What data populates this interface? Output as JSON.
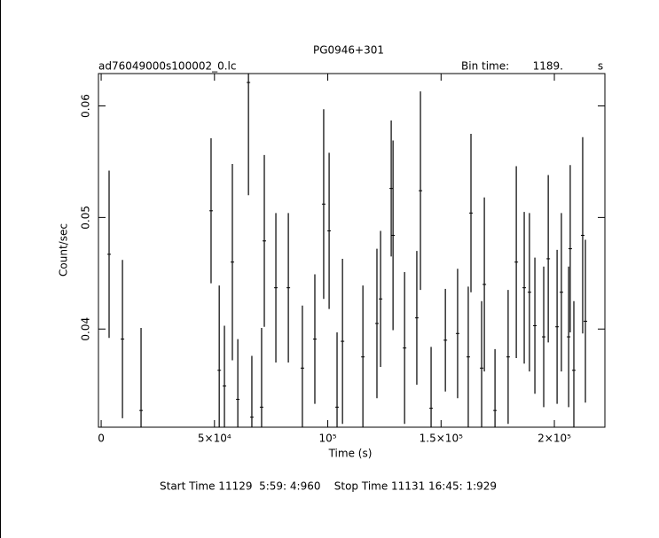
{
  "chart_data": {
    "type": "errorbar",
    "title": "PG0946+301",
    "subtitle": "ad76049000s100002_0.lc",
    "bin_time_label": "Bin time:",
    "bin_time_value": "1189.",
    "bin_time_unit": "s",
    "x_label": "Time (s)",
    "y_label": "Count/sec",
    "footer": "Start Time 11129  5:59: 4:960    Stop Time 11131 16:45: 1:929",
    "color": "#000000",
    "xlim": [
      -1200,
      222300
    ],
    "ylim": [
      0.0312,
      0.0629
    ],
    "xticks": [
      0,
      {
        "value": 50000,
        "label": "5×10⁴"
      },
      {
        "value": 100000,
        "label": "10⁵"
      },
      {
        "value": 150000,
        "label": "1.5×10⁵"
      },
      {
        "value": 200000,
        "label": "2×10⁵"
      }
    ],
    "yticks": [
      0.04,
      0.05,
      0.06
    ],
    "series": [
      {
        "name": "Count/sec",
        "x": [
          3500,
          9400,
          17600,
          48500,
          52100,
          54400,
          57900,
          60300,
          65000,
          66500,
          70800,
          72000,
          77100,
          82600,
          88800,
          94300,
          98200,
          100600,
          104100,
          106500,
          115500,
          121700,
          123300,
          128000,
          128800,
          133900,
          139300,
          140900,
          145600,
          151900,
          157300,
          162000,
          163200,
          167900,
          169100,
          173800,
          179600,
          183200,
          186700,
          189000,
          191400,
          195300,
          197300,
          201200,
          203100,
          206300,
          207000,
          208600,
          212500,
          213700
        ],
        "values": [
          0.0467,
          0.0391,
          0.0327,
          0.0506,
          0.0363,
          0.0349,
          0.046,
          0.0337,
          0.0621,
          0.0321,
          0.033,
          0.0479,
          0.0437,
          0.0437,
          0.0365,
          0.0391,
          0.0512,
          0.0488,
          0.033,
          0.0389,
          0.0375,
          0.0405,
          0.0427,
          0.0526,
          0.0484,
          0.0383,
          0.041,
          0.0524,
          0.0329,
          0.039,
          0.0396,
          0.0375,
          0.0504,
          0.0365,
          0.044,
          0.0327,
          0.0375,
          0.046,
          0.0437,
          0.0433,
          0.0403,
          0.0393,
          0.0463,
          0.0402,
          0.0433,
          0.0393,
          0.0472,
          0.0363,
          0.0484,
          0.0407
        ],
        "errors": [
          0.0075,
          0.0071,
          0.0074,
          0.0065,
          0.0076,
          0.0054,
          0.0088,
          0.0054,
          0.0101,
          0.0055,
          0.0071,
          0.0077,
          0.0067,
          0.0067,
          0.0056,
          0.0058,
          0.0085,
          0.007,
          0.0067,
          0.0074,
          0.0064,
          0.0067,
          0.0061,
          0.0061,
          0.0085,
          0.0068,
          0.006,
          0.0089,
          0.0055,
          0.0046,
          0.0058,
          0.0063,
          0.0071,
          0.006,
          0.0078,
          0.0055,
          0.006,
          0.0086,
          0.0068,
          0.0071,
          0.0061,
          0.0063,
          0.0075,
          0.0069,
          0.0071,
          0.0063,
          0.0075,
          0.0062,
          0.0088,
          0.0073
        ]
      }
    ]
  }
}
